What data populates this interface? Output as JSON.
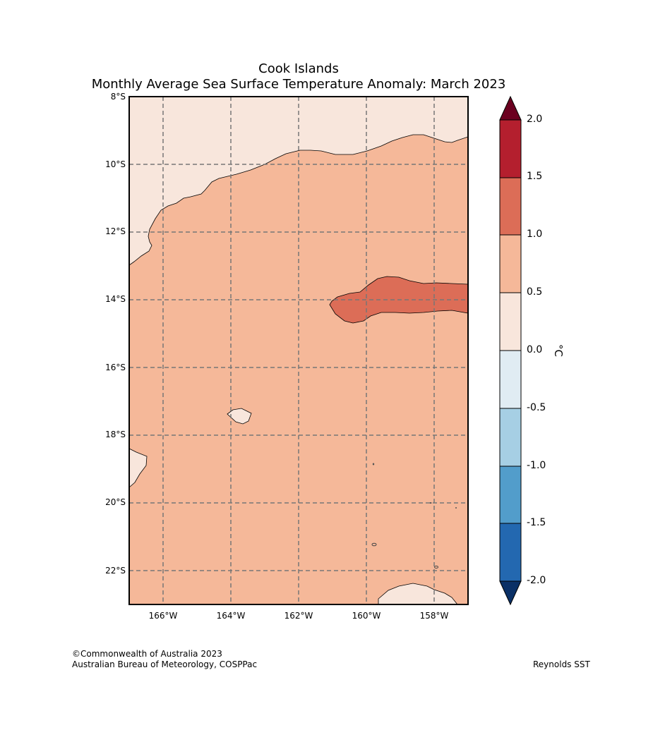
{
  "title": {
    "line1": "Cook Islands",
    "line2": "Monthly Average Sea Surface Temperature Anomaly: March 2023"
  },
  "map": {
    "lat_labels": [
      "8°S",
      "10°S",
      "12°S",
      "14°S",
      "16°S",
      "18°S",
      "20°S",
      "22°S"
    ],
    "lon_labels": [
      "166°W",
      "164°W",
      "162°W",
      "160°W",
      "158°W"
    ],
    "regions": [
      {
        "name": "anomaly-0-0.5-north",
        "range": "0.0 to 0.5",
        "color": "#f8e6dc"
      },
      {
        "name": "anomaly-0.5-1.0-main",
        "range": "0.5 to 1.0",
        "color": "#f5b899"
      },
      {
        "name": "anomaly-1.0-1.5-band",
        "range": "1.0 to 1.5",
        "color": "#dc6d57"
      }
    ]
  },
  "colorbar": {
    "unit": "°C",
    "ticks": [
      "2.0",
      "1.5",
      "1.0",
      "0.5",
      "0.0",
      "-0.5",
      "-1.0",
      "-1.5",
      "-2.0"
    ],
    "colors": [
      "#b41f2e",
      "#dc6d57",
      "#f5b899",
      "#f8e6dc",
      "#e0ecf3",
      "#a6cfe4",
      "#529dcb",
      "#2368b0"
    ],
    "over_color": "#6b0020",
    "under_color": "#0a3066"
  },
  "footer": {
    "credit_line1": "©Commonwealth of Australia 2023",
    "credit_line2": "Australian Bureau of Meteorology, COSPPac",
    "source": "Reynolds SST"
  }
}
